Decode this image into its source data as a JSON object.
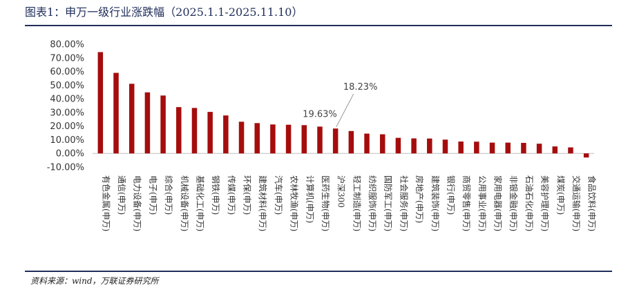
{
  "title": "图表1：申万一级行业涨跌幅（2025.1.1-2025.11.10）",
  "source": "资料来源：wind，万联证券研究所",
  "colors": {
    "bar": "#a50d0d",
    "rule": "#1f2d5a",
    "callout": "#9a9a9a"
  },
  "chart_data": {
    "type": "bar",
    "title": "申万一级行业涨跌幅（2025.1.1-2025.11.10）",
    "ylim": [
      -10,
      80
    ],
    "yticks": [
      "80.00%",
      "70.00%",
      "60.00%",
      "50.00%",
      "40.00%",
      "30.00%",
      "20.00%",
      "10.00%",
      "0.00%",
      "-10.00%"
    ],
    "ytick_values": [
      80,
      70,
      60,
      50,
      40,
      30,
      20,
      10,
      0,
      -10
    ],
    "categories": [
      "有色金属(申万)",
      "通信(申万)",
      "电力设备(申万)",
      "电子(申万)",
      "综合(申万)",
      "机械设备(申万)",
      "基础化工(申万)",
      "钢铁(申万)",
      "传媒(申万)",
      "环保(申万)",
      "建筑材料(申万)",
      "汽车(申万)",
      "农林牧渔(申万)",
      "计算机(申万)",
      "医药生物(申万)",
      "沪深300",
      "轻工制造(申万)",
      "纺织服饰(申万)",
      "国防军工(申万)",
      "社会服务(申万)",
      "房地产(申万)",
      "建筑装饰(申万)",
      "银行(申万)",
      "商贸零售(申万)",
      "公用事业(申万)",
      "家用电器(申万)",
      "非银金融(申万)",
      "石油石化(申万)",
      "美容护理(申万)",
      "煤炭(申万)",
      "交通运输(申万)",
      "食品饮料(申万)"
    ],
    "values": [
      74.2,
      59.0,
      51.0,
      44.7,
      42.4,
      33.9,
      33.3,
      30.4,
      27.8,
      23.2,
      22.2,
      21.2,
      21.0,
      20.7,
      19.63,
      18.23,
      16.4,
      14.5,
      14.0,
      11.4,
      11.0,
      10.9,
      10.1,
      8.7,
      8.6,
      7.9,
      7.9,
      7.7,
      7.1,
      5.1,
      4.4,
      -3.0
    ],
    "annotations": [
      {
        "text": "19.63%",
        "category": "医药生物(申万)",
        "value": 19.63
      },
      {
        "text": "18.23%",
        "category": "沪深300",
        "value": 18.23
      }
    ]
  }
}
